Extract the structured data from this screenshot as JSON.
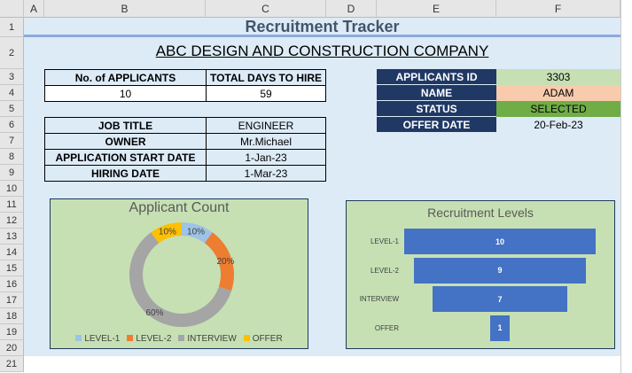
{
  "columns": [
    "A",
    "B",
    "C",
    "D",
    "E",
    "F"
  ],
  "rows": [
    "1",
    "2",
    "3",
    "4",
    "5",
    "6",
    "7",
    "8",
    "9",
    "10",
    "11",
    "12",
    "13",
    "14",
    "15",
    "16",
    "17",
    "18",
    "19",
    "20",
    "21"
  ],
  "title": "Recruitment Tracker",
  "company": "ABC DESIGN AND CONSTRUCTION COMPANY",
  "summary": {
    "h1": "No. of APPLICANTS",
    "h2": "TOTAL DAYS TO HIRE",
    "v1": "10",
    "v2": "59"
  },
  "job": [
    {
      "label": "JOB TITLE",
      "value": "ENGINEER"
    },
    {
      "label": "OWNER",
      "value": "Mr.Michael"
    },
    {
      "label": "APPLICATION START DATE",
      "value": "1-Jan-23"
    },
    {
      "label": "HIRING DATE",
      "value": "1-Mar-23"
    }
  ],
  "applicant": [
    {
      "label": "APPLICANTS ID",
      "value": "3303",
      "color": "#c6e0b4"
    },
    {
      "label": "NAME",
      "value": "ADAM",
      "color": "#f8cbad"
    },
    {
      "label": "STATUS",
      "value": "SELECTED",
      "color": "#70ad47"
    },
    {
      "label": "OFFER DATE",
      "value": "20-Feb-23",
      "color": "#ddebf7"
    }
  ],
  "chart_data": [
    {
      "type": "pie",
      "title": "Applicant Count",
      "categories": [
        "LEVEL-1",
        "LEVEL-2",
        "INTERVIEW",
        "OFFER"
      ],
      "values": [
        10,
        20,
        60,
        10
      ],
      "labels": [
        "10%",
        "20%",
        "60%",
        "10%"
      ],
      "colors": [
        "#9dc3e6",
        "#ed7d31",
        "#a5a5a5",
        "#ffc000"
      ],
      "legend": "bottom"
    },
    {
      "type": "bar",
      "subtype": "funnel",
      "title": "Recruitment Levels",
      "categories": [
        "LEVEL-1",
        "LEVEL-2",
        "INTERVIEW",
        "OFFER"
      ],
      "values": [
        10,
        9,
        7,
        1
      ],
      "labels": [
        "10",
        "9",
        "7",
        "1"
      ],
      "color": "#4472c4"
    }
  ]
}
